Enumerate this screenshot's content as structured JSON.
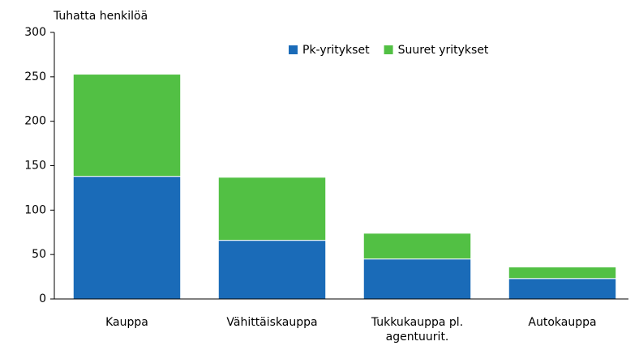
{
  "chart_data": {
    "type": "stacked_bar",
    "y_axis_label": "Tuhatta henkilöä",
    "categories": [
      "Kauppa",
      "Vähittäiskauppa",
      "Tukkukauppa pl. agentuurit.",
      "Autokauppa"
    ],
    "series": [
      {
        "name": "Pk-yritykset",
        "color": "#1a6bb8",
        "values": [
          138,
          66,
          45,
          23
        ]
      },
      {
        "name": "Suuret yritykset",
        "color": "#52c044",
        "values": [
          115,
          71,
          29,
          13
        ]
      }
    ],
    "ylim": [
      0,
      300
    ],
    "yticks": [
      0,
      50,
      100,
      150,
      200,
      250,
      300
    ],
    "grid": false
  }
}
